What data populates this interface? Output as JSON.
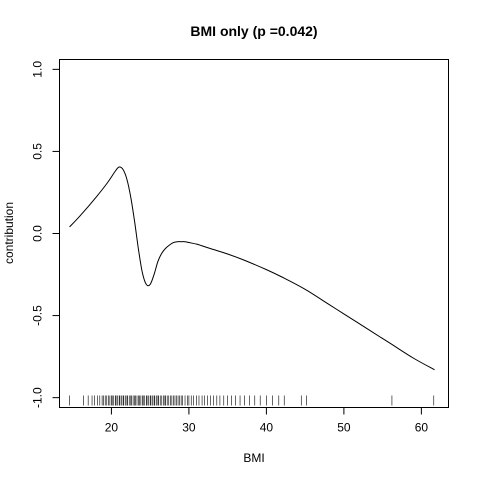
{
  "chart_data": {
    "type": "line",
    "title": "BMI only (p =0.042)",
    "xlabel": "BMI",
    "ylabel": "contribution",
    "xlim": [
      13.3,
      63.5
    ],
    "ylim": [
      -1.06,
      1.06
    ],
    "x_ticks": [
      20,
      30,
      40,
      50,
      60
    ],
    "y_ticks": [
      1.0,
      0.5,
      0.0,
      -0.5,
      -1.0
    ],
    "x_tick_labels": [
      "20",
      "30",
      "40",
      "50",
      "60"
    ],
    "y_tick_labels": [
      "1.0",
      "0.5",
      "0.0",
      "-0.5",
      "-1.0"
    ],
    "grid": false,
    "legend": "none",
    "series": [
      {
        "x": [
          14.6,
          16,
          18,
          19.5,
          20.5,
          21,
          21.5,
          22,
          22.5,
          23,
          23.5,
          24,
          24.5,
          25,
          25.5,
          26,
          26.5,
          27,
          27.5,
          28,
          28.5,
          29,
          29.5,
          30,
          31,
          32,
          33,
          35,
          37,
          40,
          42,
          45,
          48,
          50,
          53,
          56,
          59,
          61.7
        ],
        "y": [
          0.04,
          0.11,
          0.22,
          0.31,
          0.38,
          0.405,
          0.39,
          0.33,
          0.22,
          0.07,
          -0.1,
          -0.24,
          -0.31,
          -0.31,
          -0.25,
          -0.17,
          -0.12,
          -0.09,
          -0.07,
          -0.055,
          -0.05,
          -0.05,
          -0.05,
          -0.055,
          -0.065,
          -0.08,
          -0.095,
          -0.125,
          -0.16,
          -0.22,
          -0.265,
          -0.34,
          -0.43,
          -0.49,
          -0.58,
          -0.67,
          -0.76,
          -0.83
        ]
      }
    ],
    "rug": [
      14.6,
      16.4,
      17.0,
      17.5,
      17.8,
      18.2,
      18.5,
      18.8,
      19.0,
      19.2,
      19.4,
      19.6,
      19.8,
      20.0,
      20.1,
      20.3,
      20.5,
      20.6,
      20.8,
      21.0,
      21.1,
      21.3,
      21.5,
      21.6,
      21.8,
      22.0,
      22.1,
      22.3,
      22.5,
      22.6,
      22.8,
      23.0,
      23.1,
      23.3,
      23.5,
      23.6,
      23.8,
      24.0,
      24.1,
      24.3,
      24.5,
      24.6,
      24.8,
      25.0,
      25.1,
      25.3,
      25.5,
      25.6,
      25.8,
      26.0,
      26.1,
      26.3,
      26.5,
      26.7,
      26.9,
      27.0,
      27.2,
      27.4,
      27.6,
      27.8,
      28.0,
      28.2,
      28.4,
      28.6,
      28.8,
      29.0,
      29.2,
      29.5,
      29.8,
      30.0,
      30.3,
      30.6,
      31.0,
      31.3,
      31.7,
      32.0,
      32.4,
      32.8,
      33.2,
      33.6,
      34.0,
      34.5,
      35.0,
      35.5,
      36.0,
      36.6,
      37.2,
      37.8,
      38.5,
      39.2,
      40.0,
      40.8,
      41.6,
      42.3,
      44.5,
      45.2,
      56.2,
      61.6
    ]
  }
}
